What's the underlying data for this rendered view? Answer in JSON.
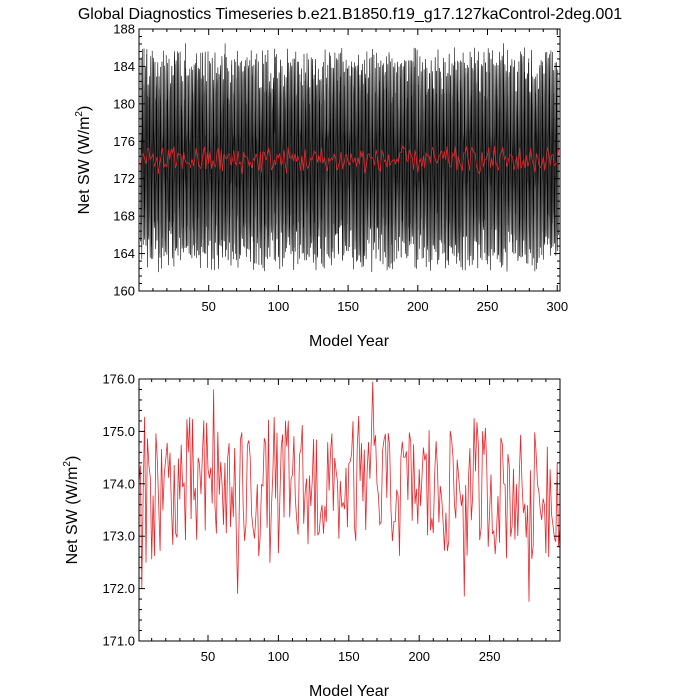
{
  "chart_data": [
    {
      "type": "line",
      "title": "Global Diagnostics Timeseries b.e21.B1850.f19_g17.127kaControl-2deg.001",
      "xlabel": "Model Year",
      "ylabel_main": "Net SW (W/m",
      "ylabel_sup": "2",
      "ylabel_close": ")",
      "xlim": [
        0,
        302
      ],
      "ylim": [
        160,
        188
      ],
      "x_ticks": [
        50,
        100,
        150,
        200,
        250,
        300
      ],
      "y_ticks": [
        160,
        164,
        168,
        172,
        176,
        180,
        184,
        188
      ],
      "grid": false,
      "series": [
        {
          "color": "#000000",
          "kind": "monthly",
          "x_start": 1,
          "x_end": 301,
          "points_per_year": 12,
          "typical_range": [
            164,
            183
          ],
          "extremes": [
            162,
            186.5
          ]
        },
        {
          "color": "#e8262a",
          "kind": "annual",
          "x_start": 1,
          "x_end": 301,
          "typical_range": [
            172.5,
            175.5
          ]
        }
      ]
    },
    {
      "type": "line",
      "title": "",
      "xlabel": "Model Year",
      "ylabel_main": "Net SW (W/m",
      "ylabel_sup": "2",
      "ylabel_close": ")",
      "xlim": [
        1,
        300
      ],
      "ylim": [
        171.0,
        176.0
      ],
      "x_ticks": [
        50,
        100,
        150,
        200,
        250
      ],
      "y_ticks": [
        "171.0",
        "172.0",
        "173.0",
        "174.0",
        "175.0",
        "176.0"
      ],
      "grid": false,
      "series": [
        {
          "color": "#e8262a",
          "kind": "annual",
          "x_start": 1,
          "x_end": 300,
          "mean": 173.9,
          "typical_range": [
            172.5,
            175.3
          ],
          "peaks": [
            [
              3,
              172.0
            ],
            [
              54,
              175.8
            ],
            [
              71,
              171.9
            ],
            [
              167,
              175.95
            ],
            [
              232,
              171.85
            ],
            [
              278,
              171.75
            ],
            [
              299,
              172.8
            ]
          ]
        }
      ]
    }
  ]
}
